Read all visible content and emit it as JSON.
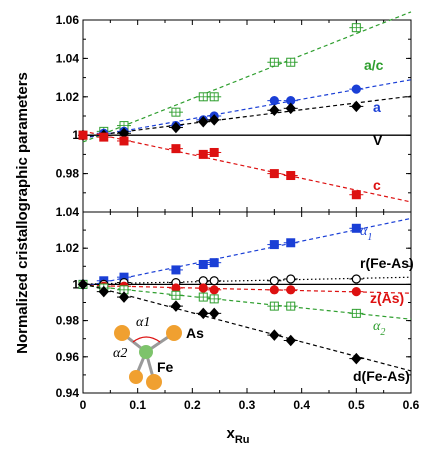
{
  "chart_data": [
    {
      "panel": "top",
      "type": "scatter",
      "ylabel": "Normalized cristallographic parameters",
      "xlim": [
        0,
        0.6
      ],
      "ylim": [
        0.96,
        1.06
      ],
      "yticks": [
        "0.98",
        "1",
        "1.02",
        "1.04",
        "1.06"
      ],
      "series": [
        {
          "name": "a/c",
          "color": "#2e9e2e",
          "marker": "square-plus",
          "filled": false,
          "x": [
            0,
            0.038,
            0.075,
            0.17,
            0.22,
            0.24,
            0.35,
            0.38,
            0.5
          ],
          "y": [
            1.0,
            1.002,
            1.005,
            1.012,
            1.02,
            1.02,
            1.038,
            1.038,
            1.056
          ]
        },
        {
          "name": "a",
          "color": "#1a3fd6",
          "marker": "circle",
          "filled": true,
          "x": [
            0,
            0.038,
            0.075,
            0.17,
            0.22,
            0.24,
            0.35,
            0.38,
            0.5
          ],
          "y": [
            1.0,
            1.001,
            1.002,
            1.005,
            1.008,
            1.01,
            1.018,
            1.018,
            1.024
          ]
        },
        {
          "name": "V",
          "color": "#000000",
          "marker": "diamond",
          "filled": true,
          "x": [
            0,
            0.038,
            0.075,
            0.17,
            0.22,
            0.24,
            0.35,
            0.38,
            0.5
          ],
          "y": [
            1.0,
            1.0,
            1.001,
            1.004,
            1.007,
            1.008,
            1.013,
            1.014,
            1.015
          ]
        },
        {
          "name": "c",
          "color": "#dd1111",
          "marker": "square",
          "filled": true,
          "x": [
            0,
            0.038,
            0.075,
            0.17,
            0.22,
            0.24,
            0.35,
            0.38,
            0.5
          ],
          "y": [
            1.0,
            0.999,
            0.997,
            0.993,
            0.99,
            0.991,
            0.98,
            0.979,
            0.969
          ]
        }
      ]
    },
    {
      "panel": "bottom",
      "type": "scatter",
      "xlabel": "x",
      "xlabel_sub": "Ru",
      "xlim": [
        0,
        0.6
      ],
      "ylim": [
        0.94,
        1.04
      ],
      "xticks": [
        "0",
        "0.1",
        "0.2",
        "0.3",
        "0.4",
        "0.5",
        "0.6"
      ],
      "yticks": [
        "0.94",
        "0.96",
        "0.98",
        "1",
        "1.02",
        "1.04"
      ],
      "series": [
        {
          "name": "α1",
          "color": "#1a3fd6",
          "marker": "square",
          "filled": true,
          "x": [
            0,
            0.038,
            0.075,
            0.17,
            0.22,
            0.24,
            0.35,
            0.38,
            0.5
          ],
          "y": [
            1.0,
            1.002,
            1.004,
            1.008,
            1.011,
            1.012,
            1.022,
            1.023,
            1.031
          ]
        },
        {
          "name": "r(Fe-As)",
          "color": "#000000",
          "marker": "circle",
          "filled": false,
          "x": [
            0,
            0.038,
            0.075,
            0.17,
            0.22,
            0.24,
            0.35,
            0.38,
            0.5
          ],
          "y": [
            1.0,
            1.0,
            1.001,
            1.001,
            1.002,
            1.002,
            1.002,
            1.003,
            1.003
          ]
        },
        {
          "name": "z(As)",
          "color": "#dd1111",
          "marker": "circle",
          "filled": true,
          "x": [
            0,
            0.038,
            0.075,
            0.17,
            0.22,
            0.24,
            0.35,
            0.38,
            0.5
          ],
          "y": [
            1.0,
            0.999,
            0.999,
            0.998,
            0.998,
            0.997,
            0.997,
            0.997,
            0.996
          ]
        },
        {
          "name": "α2",
          "color": "#2e9e2e",
          "marker": "square-plus",
          "filled": false,
          "x": [
            0,
            0.038,
            0.075,
            0.17,
            0.22,
            0.24,
            0.35,
            0.38,
            0.5
          ],
          "y": [
            1.0,
            0.998,
            0.997,
            0.994,
            0.993,
            0.992,
            0.988,
            0.988,
            0.984
          ]
        },
        {
          "name": "d(Fe-As)",
          "color": "#000000",
          "marker": "diamond",
          "filled": true,
          "x": [
            0,
            0.038,
            0.075,
            0.17,
            0.22,
            0.24,
            0.35,
            0.38,
            0.5
          ],
          "y": [
            1.0,
            0.996,
            0.993,
            0.988,
            0.984,
            0.984,
            0.972,
            0.969,
            0.959
          ]
        }
      ]
    }
  ],
  "inset": {
    "labels": [
      "α1",
      "As",
      "α2",
      "Fe"
    ],
    "colors": {
      "as": "#f0a030",
      "fe": "#7dc36b"
    }
  }
}
